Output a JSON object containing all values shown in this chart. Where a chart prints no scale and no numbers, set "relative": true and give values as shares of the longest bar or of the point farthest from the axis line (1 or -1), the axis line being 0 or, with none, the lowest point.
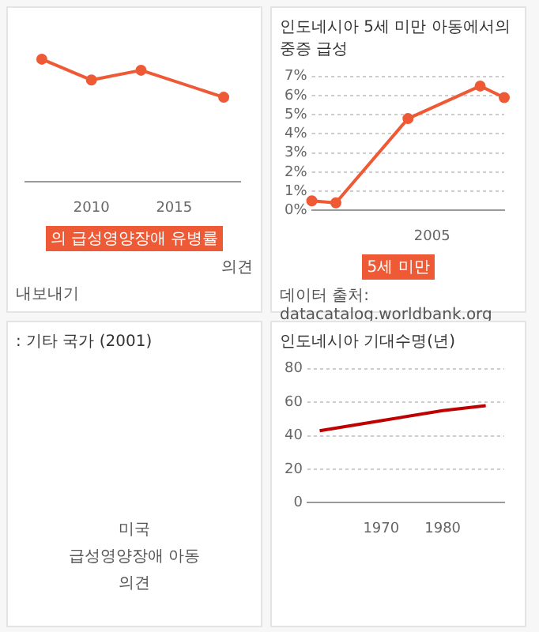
{
  "chart_data": [
    {
      "type": "line",
      "relative": true,
      "x": [
        2007,
        2010,
        2013,
        2018
      ],
      "xlim": [
        2006,
        2019
      ],
      "xticks": [
        2010,
        2015
      ],
      "marker": "circle",
      "legend": "bottom",
      "series": [
        {
          "name": "의 급성영양장애 유병률",
          "color": "#ee5a35",
          "values": [
            1,
            0.83,
            0.91,
            0.69
          ]
        }
      ],
      "annotations": [
        "의견",
        "내보내기"
      ]
    },
    {
      "type": "line",
      "title": "인도네시아 5세 미만 아동에서의 중증 급성",
      "categories": [
        null,
        null,
        null,
        null,
        null,
        "2005",
        null,
        null,
        null
      ],
      "ylim": [
        0,
        7
      ],
      "yticks": [
        {
          "value": 0,
          "label": "0%"
        },
        {
          "value": 1,
          "label": "1%"
        },
        {
          "value": 2,
          "label": "2%"
        },
        {
          "value": 3,
          "label": "3%"
        },
        {
          "value": 4,
          "label": "4%"
        },
        {
          "value": 5,
          "label": "5%"
        },
        {
          "value": 6,
          "label": "6%"
        },
        {
          "value": 7,
          "label": "7%"
        }
      ],
      "grid": "y",
      "marker": "circle",
      "legend": "bottom",
      "series": [
        {
          "name": "5세 미만",
          "color": "#ee5a35",
          "values": [
            0.5,
            0.4,
            null,
            null,
            4.8,
            null,
            null,
            6.5,
            5.9
          ]
        }
      ],
      "annotations": [
        "데이터 출처: datacatalog.worldbank.org"
      ]
    },
    {
      "type": "other",
      "title": ": 기타 국가 (2001)",
      "annotations": [
        "미국",
        "급성영양장애 아동",
        "의견"
      ]
    },
    {
      "type": "line",
      "title": "인도네시아 기대수명(년)",
      "x": [
        1960,
        1970,
        1980,
        1987
      ],
      "xlim": [
        1958,
        1990
      ],
      "xticks": [
        1970,
        1980
      ],
      "ylim": [
        0,
        80
      ],
      "yticks": [
        0,
        20,
        40,
        60,
        80
      ],
      "grid": "y",
      "marker": "none",
      "series": [
        {
          "color": "#c00000",
          "values": [
            43,
            49,
            55,
            58
          ]
        }
      ]
    }
  ]
}
